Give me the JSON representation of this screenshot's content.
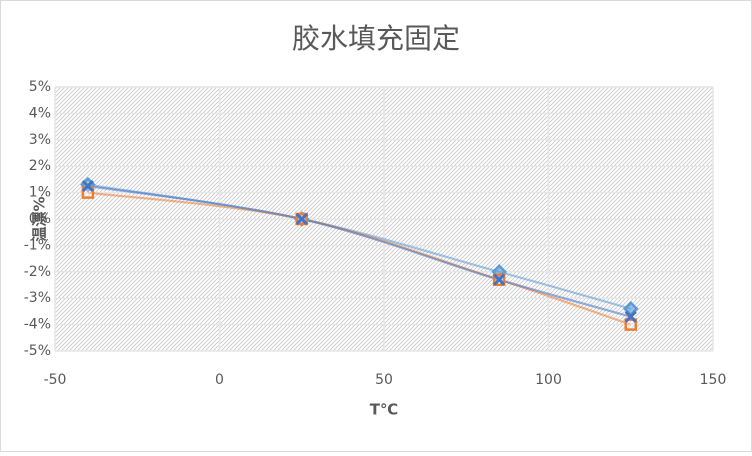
{
  "chart_data": {
    "type": "scatter",
    "title": "胶水填充固定",
    "x_label": "T℃",
    "y_label": "温漂%",
    "xlim": [
      -50,
      150
    ],
    "xticks": [
      -50,
      0,
      50,
      100,
      150
    ],
    "ylim": [
      -5,
      5
    ],
    "yticks": [
      {
        "value": 5,
        "label": "5%"
      },
      {
        "value": 4,
        "label": "4%"
      },
      {
        "value": 3,
        "label": "3%"
      },
      {
        "value": 2,
        "label": "2%"
      },
      {
        "value": 1,
        "label": "1%"
      },
      {
        "value": 0,
        "label": "0%"
      },
      {
        "value": -1,
        "label": "-1%"
      },
      {
        "value": -2,
        "label": "-2%"
      },
      {
        "value": -3,
        "label": "-3%"
      },
      {
        "value": -4,
        "label": "-4%"
      },
      {
        "value": -5,
        "label": "-5%"
      }
    ],
    "grid": true,
    "smooth": true,
    "series": [
      {
        "color": "#5b9bd5",
        "marker": "diamond",
        "x": [
          -40,
          25,
          85,
          125
        ],
        "values": [
          1.3,
          0,
          -2,
          -3.4
        ]
      },
      {
        "color": "#ed7d31",
        "marker": "square",
        "x": [
          -40,
          25,
          85,
          125
        ],
        "values": [
          1.0,
          0,
          -2.3,
          -4.0
        ]
      },
      {
        "color": "#4472c4",
        "marker": "x",
        "x": [
          -40,
          25,
          85,
          125
        ],
        "values": [
          1.25,
          0,
          -2.3,
          -3.7
        ]
      }
    ]
  }
}
